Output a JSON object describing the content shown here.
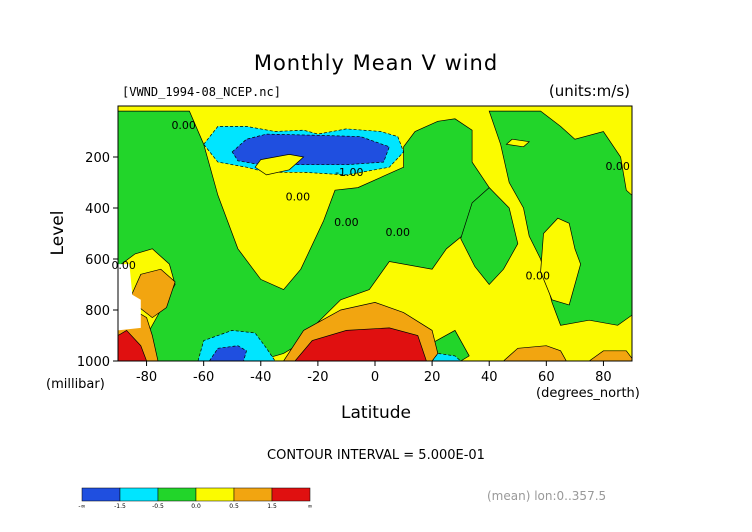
{
  "chart_data": {
    "type": "heatmap",
    "title": "Monthly Mean V wind",
    "source_label": "[VWND_1994-08_NCEP.nc]",
    "units_label": "(units:m/s)",
    "xlabel": "Latitude",
    "x_units": "(degrees_north)",
    "ylabel": "Level",
    "y_units": "(millibar)",
    "xlim": [
      -90,
      90
    ],
    "ylim": [
      1000,
      0
    ],
    "x_ticks": [
      -80,
      -60,
      -40,
      -20,
      0,
      20,
      40,
      60,
      80
    ],
    "y_ticks": [
      200,
      400,
      600,
      800,
      1000
    ],
    "contour_interval_text": "CONTOUR INTERVAL = 5.000E-01",
    "footer_text": "(mean) lon:0..357.5",
    "contour_labels": [
      {
        "text": "0.00",
        "x": -67,
        "y": 90
      },
      {
        "text": "-1.00",
        "x": -9,
        "y": 275
      },
      {
        "text": "0.00",
        "x": -27,
        "y": 370
      },
      {
        "text": "0.00",
        "x": -10,
        "y": 470
      },
      {
        "text": "0.00",
        "x": 8,
        "y": 510
      },
      {
        "text": "0.00",
        "x": 85,
        "y": 250
      },
      {
        "text": "0.00",
        "x": -88,
        "y": 640
      },
      {
        "text": "0.00",
        "x": 57,
        "y": 680
      }
    ],
    "colorbar": {
      "colors": [
        "#1f4fe0",
        "#00e5ff",
        "#22d52a",
        "#fbfb00",
        "#f2a510",
        "#e01010"
      ],
      "labels": [
        "-∞",
        "-1.5",
        "-0.5",
        "0.0",
        "0.5",
        "1.5",
        "∞"
      ]
    },
    "regions": [
      {
        "level": 4,
        "points": [
          [
            -90,
            0
          ],
          [
            90,
            0
          ],
          [
            90,
            1000
          ],
          [
            -90,
            1000
          ]
        ]
      },
      {
        "level": 3,
        "points": [
          [
            -90,
            20
          ],
          [
            -65,
            20
          ],
          [
            -60,
            150
          ],
          [
            -55,
            350
          ],
          [
            -48,
            560
          ],
          [
            -40,
            680
          ],
          [
            -32,
            720
          ],
          [
            -26,
            640
          ],
          [
            -18,
            450
          ],
          [
            -14,
            330
          ],
          [
            -6,
            320
          ],
          [
            10,
            240
          ],
          [
            10,
            160
          ],
          [
            14,
            100
          ],
          [
            22,
            60
          ],
          [
            28,
            50
          ],
          [
            34,
            95
          ],
          [
            34,
            220
          ],
          [
            40,
            320
          ],
          [
            43,
            360
          ],
          [
            37,
            450
          ],
          [
            25,
            560
          ],
          [
            20,
            640
          ],
          [
            5,
            610
          ],
          [
            -2,
            720
          ],
          [
            -12,
            760
          ],
          [
            -22,
            870
          ],
          [
            -26,
            930
          ],
          [
            -32,
            970
          ],
          [
            -38,
            990
          ],
          [
            -45,
            1000
          ],
          [
            -90,
            1000
          ]
        ]
      },
      {
        "level": 3,
        "points": [
          [
            34,
            380
          ],
          [
            40,
            320
          ],
          [
            47,
            400
          ],
          [
            50,
            540
          ],
          [
            45,
            640
          ],
          [
            40,
            700
          ],
          [
            35,
            630
          ],
          [
            30,
            520
          ]
        ]
      },
      {
        "level": 3,
        "points": [
          [
            40,
            20
          ],
          [
            58,
            20
          ],
          [
            65,
            80
          ],
          [
            70,
            130
          ],
          [
            80,
            100
          ],
          [
            86,
            200
          ],
          [
            88,
            330
          ],
          [
            90,
            350
          ],
          [
            90,
            820
          ],
          [
            85,
            860
          ],
          [
            75,
            840
          ],
          [
            65,
            860
          ],
          [
            62,
            770
          ],
          [
            58,
            600
          ],
          [
            54,
            510
          ],
          [
            52,
            400
          ],
          [
            47,
            300
          ],
          [
            44,
            150
          ]
        ]
      },
      {
        "level": 3,
        "points": [
          [
            20,
            930
          ],
          [
            28,
            880
          ],
          [
            33,
            980
          ],
          [
            30,
            1000
          ],
          [
            20,
            1000
          ]
        ]
      },
      {
        "level": 2,
        "points": [
          [
            -60,
            150
          ],
          [
            -55,
            80
          ],
          [
            -45,
            80
          ],
          [
            -35,
            100
          ],
          [
            -25,
            95
          ],
          [
            -20,
            110
          ],
          [
            -10,
            90
          ],
          [
            2,
            100
          ],
          [
            8,
            120
          ],
          [
            10,
            180
          ],
          [
            5,
            240
          ],
          [
            -10,
            270
          ],
          [
            -25,
            260
          ],
          [
            -38,
            260
          ],
          [
            -45,
            240
          ],
          [
            -55,
            220
          ]
        ]
      },
      {
        "level": 1,
        "points": [
          [
            -50,
            180
          ],
          [
            -45,
            130
          ],
          [
            -38,
            110
          ],
          [
            -20,
            115
          ],
          [
            -5,
            120
          ],
          [
            5,
            160
          ],
          [
            3,
            220
          ],
          [
            -10,
            230
          ],
          [
            -25,
            230
          ],
          [
            -40,
            230
          ],
          [
            -48,
            215
          ]
        ]
      },
      {
        "level": 2,
        "points": [
          [
            -62,
            1000
          ],
          [
            -60,
            920
          ],
          [
            -50,
            880
          ],
          [
            -42,
            890
          ],
          [
            -38,
            950
          ],
          [
            -35,
            1000
          ]
        ]
      },
      {
        "level": 1,
        "points": [
          [
            -58,
            1000
          ],
          [
            -55,
            950
          ],
          [
            -48,
            940
          ],
          [
            -45,
            960
          ],
          [
            -46,
            1000
          ]
        ]
      },
      {
        "level": 2,
        "points": [
          [
            20,
            1000
          ],
          [
            22,
            970
          ],
          [
            28,
            980
          ],
          [
            30,
            1000
          ]
        ]
      },
      {
        "level": 4,
        "points": [
          [
            -40,
            210
          ],
          [
            -30,
            190
          ],
          [
            -25,
            200
          ],
          [
            -30,
            250
          ],
          [
            -38,
            270
          ],
          [
            -42,
            240
          ]
        ]
      },
      {
        "level": 4,
        "points": [
          [
            48,
            130
          ],
          [
            54,
            140
          ],
          [
            52,
            160
          ],
          [
            46,
            150
          ]
        ]
      },
      {
        "level": 4,
        "points": [
          [
            59,
            500
          ],
          [
            64,
            440
          ],
          [
            68,
            460
          ],
          [
            70,
            560
          ],
          [
            72,
            620
          ],
          [
            68,
            780
          ],
          [
            62,
            760
          ],
          [
            58,
            650
          ]
        ]
      },
      {
        "level": 4,
        "points": [
          [
            -90,
            630
          ],
          [
            -84,
            580
          ],
          [
            -78,
            560
          ],
          [
            -72,
            620
          ],
          [
            -70,
            700
          ],
          [
            -75,
            800
          ],
          [
            -80,
            900
          ],
          [
            -85,
            940
          ],
          [
            -90,
            950
          ]
        ]
      },
      {
        "level": 5,
        "points": [
          [
            -82,
            660
          ],
          [
            -75,
            640
          ],
          [
            -70,
            690
          ],
          [
            -73,
            790
          ],
          [
            -78,
            830
          ],
          [
            -86,
            760
          ]
        ]
      },
      {
        "level": 5,
        "points": [
          [
            -90,
            850
          ],
          [
            -86,
            790
          ],
          [
            -80,
            830
          ],
          [
            -78,
            900
          ],
          [
            -76,
            1000
          ],
          [
            -90,
            1000
          ]
        ]
      },
      {
        "level": 6,
        "points": [
          [
            -90,
            900
          ],
          [
            -87,
            880
          ],
          [
            -82,
            940
          ],
          [
            -80,
            1000
          ],
          [
            -90,
            1000
          ]
        ]
      },
      {
        "level": 5,
        "points": [
          [
            -32,
            1000
          ],
          [
            -25,
            880
          ],
          [
            -12,
            800
          ],
          [
            0,
            770
          ],
          [
            10,
            810
          ],
          [
            20,
            880
          ],
          [
            22,
            970
          ],
          [
            20,
            1000
          ]
        ]
      },
      {
        "level": 6,
        "points": [
          [
            -28,
            1000
          ],
          [
            -22,
            920
          ],
          [
            -10,
            880
          ],
          [
            5,
            870
          ],
          [
            15,
            900
          ],
          [
            18,
            1000
          ]
        ]
      },
      {
        "level": 5,
        "points": [
          [
            45,
            1000
          ],
          [
            50,
            950
          ],
          [
            60,
            940
          ],
          [
            65,
            960
          ],
          [
            67,
            1000
          ]
        ]
      },
      {
        "level": 5,
        "points": [
          [
            75,
            1000
          ],
          [
            80,
            960
          ],
          [
            88,
            960
          ],
          [
            90,
            990
          ],
          [
            90,
            1000
          ]
        ]
      }
    ],
    "missing_region": {
      "points": [
        [
          -90,
          620
        ],
        [
          -86,
          620
        ],
        [
          -85,
          740
        ],
        [
          -82,
          760
        ],
        [
          -82,
          870
        ],
        [
          -90,
          880
        ]
      ]
    }
  }
}
